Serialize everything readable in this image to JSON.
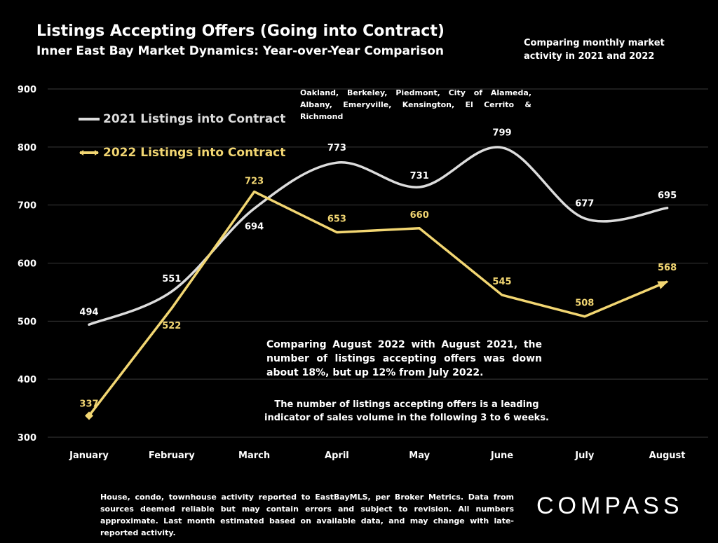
{
  "title": "Listings Accepting Offers (Going into Contract)",
  "subtitle": "Inner East Bay Market Dynamics: Year-over-Year Comparison",
  "top_note": "Comparing monthly market activity in 2021 and 2022",
  "region_note": "Oakland, Berkeley, Piedmont, City of Alameda, Albany, Emeryville, Kensington, El Cerrito & Richmond",
  "comment_1": "Comparing August 2022 with August 2021, the number of listings accepting offers was down about 18%, but up 12% from July 2022.",
  "comment_2": "The number of listings accepting offers is a leading indicator of sales volume in the following 3 to 6 weeks.",
  "footnote": "House, condo, townhouse activity reported to EastBayMLS, per Broker Metrics. Data from sources deemed reliable but may contain errors and subject to revision. All numbers approximate. Last month estimated based on available data, and may change with late-reported activity.",
  "brand": "COMPASS",
  "colors": {
    "background": "#000000",
    "series_2021": "#dcdcdc",
    "series_2022": "#f2d672",
    "gridline": "#3a3a3a"
  },
  "chart_data": {
    "type": "line",
    "title": "Listings Accepting Offers (Going into Contract)",
    "categories": [
      "January",
      "February",
      "March",
      "April",
      "May",
      "June",
      "July",
      "August"
    ],
    "ylim": [
      300,
      900
    ],
    "yticks": [
      300,
      400,
      500,
      600,
      700,
      800,
      900
    ],
    "grid": true,
    "legend_position": "top-left",
    "series": [
      {
        "name": "2021 Listings into Contract",
        "values": [
          494,
          551,
          694,
          773,
          731,
          799,
          677,
          695
        ],
        "smooth": true,
        "color": "#dcdcdc"
      },
      {
        "name": "2022 Listings into Contract",
        "values": [
          337,
          522,
          723,
          653,
          660,
          545,
          508,
          568
        ],
        "smooth": false,
        "color": "#f2d672",
        "markers": "arrow"
      }
    ]
  }
}
